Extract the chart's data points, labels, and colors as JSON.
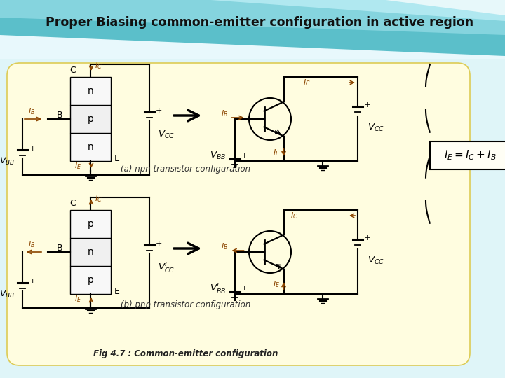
{
  "title": "Proper Biasing common-emitter configuration in active region",
  "caption_a": "(a) npn transistor configuration",
  "caption_b": "(b) pnp transistor configuration",
  "fig_caption": "Fig 4.7 : Common-emitter configuration",
  "yellow_bg": "#fffde0",
  "teal1": "#5bbfca",
  "teal2": "#8fd8e0",
  "teal3": "#b8eaf0",
  "white_bg": "#ffffff",
  "arrow_color": "#8B4500",
  "black": "#000000"
}
